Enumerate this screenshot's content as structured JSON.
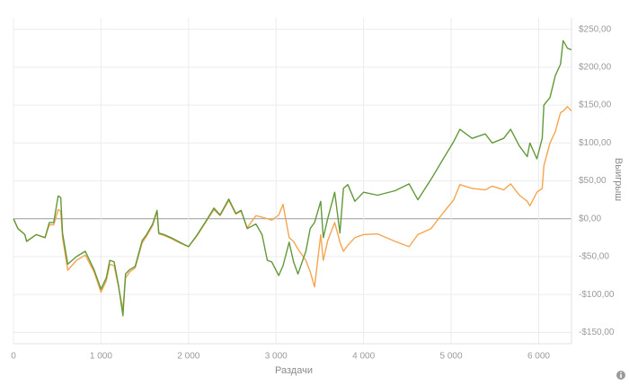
{
  "chart_data": {
    "type": "line",
    "x_label": "Раздачи",
    "y_label": "Выигрыш",
    "x": [
      0,
      50,
      130,
      150,
      260,
      360,
      410,
      460,
      510,
      540,
      560,
      620,
      720,
      820,
      920,
      1000,
      1060,
      1100,
      1150,
      1200,
      1250,
      1280,
      1330,
      1390,
      1470,
      1520,
      1590,
      1640,
      1660,
      1720,
      1800,
      1900,
      2000,
      2100,
      2210,
      2290,
      2360,
      2460,
      2540,
      2600,
      2670,
      2770,
      2840,
      2900,
      2950,
      3030,
      3080,
      3150,
      3200,
      3250,
      3340,
      3390,
      3440,
      3510,
      3540,
      3590,
      3670,
      3730,
      3770,
      3820,
      3900,
      4000,
      4160,
      4360,
      4520,
      4620,
      4770,
      4910,
      5030,
      5100,
      5240,
      5390,
      5470,
      5600,
      5680,
      5780,
      5870,
      5900,
      5980,
      6040,
      6060,
      6130,
      6190,
      6250,
      6280,
      6330,
      6375
    ],
    "series": [
      {
        "color": "#f5a54f",
        "values": [
          0,
          -13,
          -21,
          -30,
          -21,
          -25,
          -8,
          -8,
          12,
          10,
          -25,
          -68,
          -55,
          -48,
          -70,
          -97,
          -82,
          -60,
          -62,
          -90,
          -120,
          -78,
          -70,
          -65,
          -32,
          -23,
          -9,
          10,
          -20,
          -22,
          -26,
          -32,
          -37,
          -22,
          -2,
          12,
          4,
          24,
          6,
          10,
          -12,
          4,
          2,
          0,
          -2,
          5,
          19,
          -25,
          -30,
          -40,
          -55,
          -70,
          -90,
          -21,
          -55,
          -29,
          -5,
          -31,
          -43,
          -35,
          -25,
          -21,
          -20,
          -30,
          -37,
          -21,
          -13,
          8,
          25,
          45,
          40,
          38,
          43,
          38,
          46,
          31,
          23,
          17,
          35,
          40,
          70,
          100,
          115,
          140,
          142,
          148,
          142
        ]
      },
      {
        "color": "#62993a",
        "values": [
          0,
          -13,
          -21,
          -30,
          -21,
          -25,
          -5,
          -5,
          30,
          28,
          -19,
          -60,
          -50,
          -43,
          -67,
          -93,
          -78,
          -55,
          -57,
          -88,
          -128,
          -73,
          -67,
          -63,
          -29,
          -21,
          -7,
          11,
          -19,
          -21,
          -25,
          -31,
          -37,
          -21,
          -1,
          14,
          5,
          26,
          7,
          11,
          -13,
          -7,
          -21,
          -55,
          -57,
          -75,
          -62,
          -31,
          -57,
          -73,
          -43,
          -13,
          -5,
          23,
          -25,
          0,
          35,
          -19,
          40,
          45,
          23,
          35,
          31,
          37,
          46,
          25,
          52,
          79,
          102,
          118,
          106,
          112,
          100,
          106,
          118,
          96,
          82,
          100,
          79,
          106,
          150,
          160,
          189,
          204,
          235,
          225,
          223
        ]
      }
    ],
    "xlim": [
      0,
      6375
    ],
    "ylim": [
      -165,
      265
    ],
    "xticks": [
      0,
      {
        "value": 1000,
        "label": "1 000"
      },
      {
        "value": 2000,
        "label": "2 000"
      },
      {
        "value": 3000,
        "label": "3 000"
      },
      {
        "value": 4000,
        "label": "4 000"
      },
      {
        "value": 5000,
        "label": "5 000"
      },
      {
        "value": 6000,
        "label": "6 000"
      }
    ],
    "yticks": [
      {
        "value": -150,
        "label": "-$150,00"
      },
      {
        "value": -100,
        "label": "-$100,00"
      },
      {
        "value": -50,
        "label": "-$50,00"
      },
      {
        "value": 0,
        "label": "$0,00"
      },
      {
        "value": 50,
        "label": "$50,00"
      },
      {
        "value": 100,
        "label": "$100,00"
      },
      {
        "value": 150,
        "label": "$150,00"
      },
      {
        "value": 200,
        "label": "$200,00"
      },
      {
        "value": 250,
        "label": "$250,00"
      }
    ],
    "grid": true
  }
}
